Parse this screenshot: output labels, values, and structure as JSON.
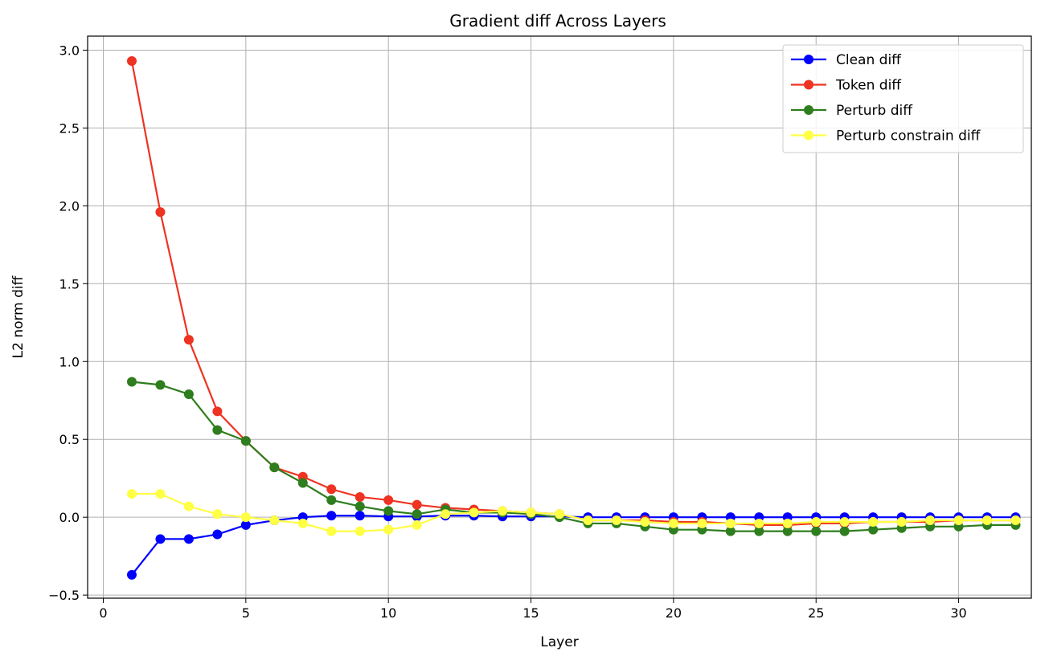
{
  "chart_data": {
    "type": "line",
    "title": "Gradient diff Across Layers",
    "xlabel": "Layer",
    "ylabel": "L2 norm diff",
    "xlim": [
      -0.55,
      32.55
    ],
    "ylim": [
      -0.52,
      3.09
    ],
    "xticks": [
      0,
      5,
      10,
      15,
      20,
      25,
      30
    ],
    "xtick_labels": [
      "0",
      "5",
      "10",
      "15",
      "20",
      "25",
      "30"
    ],
    "yticks": [
      -0.5,
      0.0,
      0.5,
      1.0,
      1.5,
      2.0,
      2.5,
      3.0
    ],
    "ytick_labels": [
      "−0.5",
      "0.0",
      "0.5",
      "1.0",
      "1.5",
      "2.0",
      "2.5",
      "3.0"
    ],
    "grid": true,
    "legend_position": "top-right",
    "x": [
      1,
      2,
      3,
      4,
      5,
      6,
      7,
      8,
      9,
      10,
      11,
      12,
      13,
      14,
      15,
      16,
      17,
      18,
      19,
      20,
      21,
      22,
      23,
      24,
      25,
      26,
      27,
      28,
      29,
      30,
      31,
      32
    ],
    "series": [
      {
        "name": "Clean diff",
        "color": "#0000ff",
        "values": [
          -0.37,
          -0.14,
          -0.14,
          -0.11,
          -0.05,
          -0.02,
          0.0,
          0.01,
          0.01,
          0.005,
          0.005,
          0.01,
          0.01,
          0.005,
          0.005,
          0.005,
          0.0,
          0.0,
          0.0,
          0.0,
          0.0,
          0.0,
          0.0,
          0.0,
          0.0,
          0.0,
          0.0,
          0.0,
          0.0,
          0.0,
          0.0,
          0.0
        ]
      },
      {
        "name": "Token diff",
        "color": "#ee3322",
        "values": [
          2.93,
          1.96,
          1.14,
          0.68,
          0.49,
          0.32,
          0.26,
          0.18,
          0.13,
          0.11,
          0.08,
          0.06,
          0.05,
          0.04,
          0.03,
          0.02,
          -0.02,
          -0.02,
          -0.02,
          -0.03,
          -0.03,
          -0.04,
          -0.05,
          -0.05,
          -0.04,
          -0.04,
          -0.03,
          -0.03,
          -0.03,
          -0.02,
          -0.02,
          -0.02
        ]
      },
      {
        "name": "Perturb diff",
        "color": "#2e7d1e",
        "values": [
          0.87,
          0.85,
          0.79,
          0.56,
          0.49,
          0.32,
          0.22,
          0.11,
          0.07,
          0.04,
          0.02,
          0.05,
          0.03,
          0.03,
          0.02,
          0.0,
          -0.04,
          -0.04,
          -0.06,
          -0.08,
          -0.08,
          -0.09,
          -0.09,
          -0.09,
          -0.09,
          -0.09,
          -0.08,
          -0.07,
          -0.06,
          -0.06,
          -0.05,
          -0.05
        ]
      },
      {
        "name": "Perturb constrain diff",
        "color": "#ffff44",
        "values": [
          0.15,
          0.15,
          0.07,
          0.02,
          0.0,
          -0.02,
          -0.04,
          -0.09,
          -0.09,
          -0.08,
          -0.05,
          0.02,
          0.03,
          0.04,
          0.03,
          0.02,
          -0.02,
          -0.02,
          -0.03,
          -0.04,
          -0.04,
          -0.04,
          -0.04,
          -0.04,
          -0.03,
          -0.03,
          -0.03,
          -0.03,
          -0.02,
          -0.02,
          -0.02,
          -0.02
        ]
      }
    ]
  }
}
